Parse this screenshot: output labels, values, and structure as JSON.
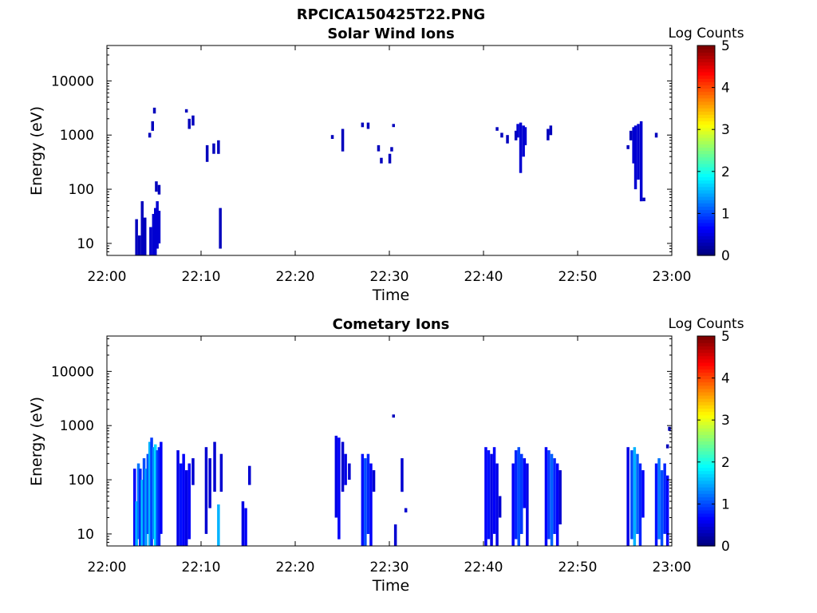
{
  "page_title": "RPCICA150425T22.PNG",
  "chart_data": [
    {
      "type": "heatmap",
      "title": "Solar Wind Ions",
      "xlabel": "Time",
      "ylabel": "Energy (eV)",
      "xlim": [
        "22:00",
        "23:00"
      ],
      "x_ticks": [
        "22:00",
        "22:10",
        "22:20",
        "22:30",
        "22:40",
        "22:50",
        "23:00"
      ],
      "y_scale": "log",
      "ylim": [
        6,
        45000
      ],
      "y_ticks": [
        "10",
        "100",
        "1000",
        "10000"
      ],
      "colorbar": {
        "label": "Log Counts",
        "range": [
          0,
          5
        ],
        "ticks": [
          "0",
          "1",
          "2",
          "3",
          "4",
          "5"
        ],
        "colormap": "jet"
      },
      "grid": false,
      "cells": [
        {
          "t": 3.0,
          "e0": 6,
          "e1": 28,
          "v": 0.3
        },
        {
          "t": 3.3,
          "e0": 6,
          "e1": 14,
          "v": 0.3
        },
        {
          "t": 3.6,
          "e0": 6,
          "e1": 60,
          "v": 0.3
        },
        {
          "t": 3.9,
          "e0": 6,
          "e1": 30,
          "v": 0.3
        },
        {
          "t": 4.5,
          "e0": 6,
          "e1": 20,
          "v": 0.4
        },
        {
          "t": 4.8,
          "e0": 6,
          "e1": 35,
          "v": 0.4
        },
        {
          "t": 5.0,
          "e0": 6,
          "e1": 45,
          "v": 0.4
        },
        {
          "t": 5.2,
          "e0": 8,
          "e1": 60,
          "v": 0.4
        },
        {
          "t": 5.4,
          "e0": 10,
          "e1": 40,
          "v": 0.4
        },
        {
          "t": 5.1,
          "e0": 90,
          "e1": 140,
          "v": 0.3
        },
        {
          "t": 5.4,
          "e0": 80,
          "e1": 120,
          "v": 0.3
        },
        {
          "t": 4.4,
          "e0": 900,
          "e1": 1100,
          "v": 0.3
        },
        {
          "t": 4.7,
          "e0": 1200,
          "e1": 1800,
          "v": 0.3
        },
        {
          "t": 4.9,
          "e0": 2500,
          "e1": 3200,
          "v": 0.3
        },
        {
          "t": 8.3,
          "e0": 2600,
          "e1": 3000,
          "v": 0.3
        },
        {
          "t": 8.6,
          "e0": 1300,
          "e1": 2000,
          "v": 0.3
        },
        {
          "t": 9.0,
          "e0": 1500,
          "e1": 2300,
          "v": 0.3
        },
        {
          "t": 10.5,
          "e0": 320,
          "e1": 650,
          "v": 0.3
        },
        {
          "t": 11.2,
          "e0": 450,
          "e1": 700,
          "v": 0.3
        },
        {
          "t": 11.7,
          "e0": 450,
          "e1": 800,
          "v": 0.3
        },
        {
          "t": 11.9,
          "e0": 8,
          "e1": 45,
          "v": 0.3
        },
        {
          "t": 23.8,
          "e0": 850,
          "e1": 1000,
          "v": 0.3
        },
        {
          "t": 24.9,
          "e0": 500,
          "e1": 1300,
          "v": 0.3
        },
        {
          "t": 27.0,
          "e0": 1400,
          "e1": 1700,
          "v": 0.3
        },
        {
          "t": 27.6,
          "e0": 1300,
          "e1": 1700,
          "v": 0.3
        },
        {
          "t": 28.7,
          "e0": 500,
          "e1": 650,
          "v": 0.3
        },
        {
          "t": 29.0,
          "e0": 300,
          "e1": 380,
          "v": 0.3
        },
        {
          "t": 29.9,
          "e0": 300,
          "e1": 450,
          "v": 0.3
        },
        {
          "t": 30.1,
          "e0": 500,
          "e1": 600,
          "v": 0.3
        },
        {
          "t": 30.3,
          "e0": 1400,
          "e1": 1600,
          "v": 0.3
        },
        {
          "t": 41.3,
          "e0": 1200,
          "e1": 1400,
          "v": 0.3
        },
        {
          "t": 41.8,
          "e0": 900,
          "e1": 1100,
          "v": 0.3
        },
        {
          "t": 42.4,
          "e0": 700,
          "e1": 1000,
          "v": 0.3
        },
        {
          "t": 43.3,
          "e0": 800,
          "e1": 1200,
          "v": 0.3
        },
        {
          "t": 43.5,
          "e0": 900,
          "e1": 1600,
          "v": 0.4
        },
        {
          "t": 43.8,
          "e0": 200,
          "e1": 1700,
          "v": 0.4
        },
        {
          "t": 44.1,
          "e0": 400,
          "e1": 1500,
          "v": 0.4
        },
        {
          "t": 44.3,
          "e0": 650,
          "e1": 1400,
          "v": 0.4
        },
        {
          "t": 46.7,
          "e0": 800,
          "e1": 1300,
          "v": 0.3
        },
        {
          "t": 47.0,
          "e0": 1000,
          "e1": 1500,
          "v": 0.3
        },
        {
          "t": 55.2,
          "e0": 550,
          "e1": 650,
          "v": 0.3
        },
        {
          "t": 55.5,
          "e0": 800,
          "e1": 1200,
          "v": 0.3
        },
        {
          "t": 55.8,
          "e0": 300,
          "e1": 1400,
          "v": 0.4
        },
        {
          "t": 56.0,
          "e0": 100,
          "e1": 1500,
          "v": 0.4
        },
        {
          "t": 56.3,
          "e0": 150,
          "e1": 1600,
          "v": 0.4
        },
        {
          "t": 56.6,
          "e0": 60,
          "e1": 1800,
          "v": 0.4
        },
        {
          "t": 56.9,
          "e0": 60,
          "e1": 70,
          "v": 0.3
        },
        {
          "t": 58.2,
          "e0": 900,
          "e1": 1100,
          "v": 0.3
        }
      ]
    },
    {
      "type": "heatmap",
      "title": "Cometary Ions",
      "xlabel": "Time",
      "ylabel": "Energy (eV)",
      "xlim": [
        "22:00",
        "23:00"
      ],
      "x_ticks": [
        "22:00",
        "22:10",
        "22:20",
        "22:30",
        "22:40",
        "22:50",
        "23:00"
      ],
      "y_scale": "log",
      "ylim": [
        6,
        45000
      ],
      "y_ticks": [
        "10",
        "100",
        "1000",
        "10000"
      ],
      "colorbar": {
        "label": "Log Counts",
        "range": [
          0,
          5
        ],
        "ticks": [
          "0",
          "1",
          "2",
          "3",
          "4",
          "5"
        ],
        "colormap": "jet"
      },
      "grid": false,
      "cells": [
        {
          "t": 2.8,
          "e0": 6,
          "e1": 160,
          "v": 0.6
        },
        {
          "t": 3.0,
          "e0": 6,
          "e1": 40,
          "v": 1.5
        },
        {
          "t": 3.2,
          "e0": 8,
          "e1": 200,
          "v": 1.2
        },
        {
          "t": 3.4,
          "e0": 6,
          "e1": 160,
          "v": 0.8
        },
        {
          "t": 3.6,
          "e0": 6,
          "e1": 100,
          "v": 1.6
        },
        {
          "t": 3.8,
          "e0": 6,
          "e1": 250,
          "v": 1.0
        },
        {
          "t": 4.0,
          "e0": 6,
          "e1": 160,
          "v": 1.4
        },
        {
          "t": 4.2,
          "e0": 10,
          "e1": 300,
          "v": 1.0
        },
        {
          "t": 4.4,
          "e0": 6,
          "e1": 500,
          "v": 1.5
        },
        {
          "t": 4.6,
          "e0": 6,
          "e1": 600,
          "v": 0.9
        },
        {
          "t": 4.8,
          "e0": 8,
          "e1": 400,
          "v": 1.3
        },
        {
          "t": 5.0,
          "e0": 6,
          "e1": 450,
          "v": 1.7
        },
        {
          "t": 5.2,
          "e0": 6,
          "e1": 350,
          "v": 1.0
        },
        {
          "t": 5.4,
          "e0": 6,
          "e1": 400,
          "v": 0.8
        },
        {
          "t": 5.6,
          "e0": 10,
          "e1": 500,
          "v": 0.6
        },
        {
          "t": 7.4,
          "e0": 6,
          "e1": 350,
          "v": 0.5
        },
        {
          "t": 7.7,
          "e0": 6,
          "e1": 200,
          "v": 0.7
        },
        {
          "t": 8.0,
          "e0": 6,
          "e1": 300,
          "v": 0.6
        },
        {
          "t": 8.3,
          "e0": 6,
          "e1": 150,
          "v": 0.5
        },
        {
          "t": 8.6,
          "e0": 8,
          "e1": 200,
          "v": 0.6
        },
        {
          "t": 9.0,
          "e0": 80,
          "e1": 250,
          "v": 0.4
        },
        {
          "t": 10.4,
          "e0": 10,
          "e1": 400,
          "v": 0.4
        },
        {
          "t": 10.8,
          "e0": 30,
          "e1": 250,
          "v": 0.4
        },
        {
          "t": 11.3,
          "e0": 60,
          "e1": 500,
          "v": 0.4
        },
        {
          "t": 11.7,
          "e0": 6,
          "e1": 35,
          "v": 1.5
        },
        {
          "t": 12.0,
          "e0": 60,
          "e1": 300,
          "v": 0.4
        },
        {
          "t": 14.3,
          "e0": 6,
          "e1": 40,
          "v": 0.5
        },
        {
          "t": 14.6,
          "e0": 6,
          "e1": 30,
          "v": 0.6
        },
        {
          "t": 15.0,
          "e0": 80,
          "e1": 180,
          "v": 0.4
        },
        {
          "t": 24.2,
          "e0": 20,
          "e1": 650,
          "v": 0.5
        },
        {
          "t": 24.5,
          "e0": 8,
          "e1": 600,
          "v": 0.6
        },
        {
          "t": 24.9,
          "e0": 60,
          "e1": 500,
          "v": 0.4
        },
        {
          "t": 25.2,
          "e0": 80,
          "e1": 300,
          "v": 0.5
        },
        {
          "t": 25.6,
          "e0": 100,
          "e1": 200,
          "v": 0.4
        },
        {
          "t": 27.0,
          "e0": 6,
          "e1": 300,
          "v": 0.7
        },
        {
          "t": 27.3,
          "e0": 6,
          "e1": 250,
          "v": 1.0
        },
        {
          "t": 27.6,
          "e0": 10,
          "e1": 300,
          "v": 0.8
        },
        {
          "t": 27.9,
          "e0": 6,
          "e1": 200,
          "v": 0.6
        },
        {
          "t": 28.2,
          "e0": 60,
          "e1": 150,
          "v": 0.4
        },
        {
          "t": 30.3,
          "e0": 1400,
          "e1": 1600,
          "v": 0.3
        },
        {
          "t": 30.5,
          "e0": 6,
          "e1": 15,
          "v": 0.4
        },
        {
          "t": 31.2,
          "e0": 60,
          "e1": 250,
          "v": 0.4
        },
        {
          "t": 31.6,
          "e0": 25,
          "e1": 30,
          "v": 0.4
        },
        {
          "t": 40.1,
          "e0": 6,
          "e1": 400,
          "v": 0.6
        },
        {
          "t": 40.4,
          "e0": 8,
          "e1": 350,
          "v": 0.7
        },
        {
          "t": 40.7,
          "e0": 6,
          "e1": 300,
          "v": 0.5
        },
        {
          "t": 41.0,
          "e0": 10,
          "e1": 400,
          "v": 0.6
        },
        {
          "t": 41.3,
          "e0": 6,
          "e1": 200,
          "v": 0.5
        },
        {
          "t": 41.6,
          "e0": 20,
          "e1": 50,
          "v": 0.4
        },
        {
          "t": 43.0,
          "e0": 6,
          "e1": 200,
          "v": 0.6
        },
        {
          "t": 43.3,
          "e0": 8,
          "e1": 350,
          "v": 0.8
        },
        {
          "t": 43.6,
          "e0": 6,
          "e1": 400,
          "v": 1.0
        },
        {
          "t": 43.9,
          "e0": 10,
          "e1": 300,
          "v": 0.9
        },
        {
          "t": 44.2,
          "e0": 30,
          "e1": 250,
          "v": 0.6
        },
        {
          "t": 44.5,
          "e0": 6,
          "e1": 200,
          "v": 0.5
        },
        {
          "t": 46.5,
          "e0": 6,
          "e1": 400,
          "v": 0.6
        },
        {
          "t": 46.8,
          "e0": 8,
          "e1": 350,
          "v": 0.9
        },
        {
          "t": 47.1,
          "e0": 6,
          "e1": 300,
          "v": 1.1
        },
        {
          "t": 47.4,
          "e0": 10,
          "e1": 250,
          "v": 0.8
        },
        {
          "t": 47.7,
          "e0": 6,
          "e1": 200,
          "v": 0.6
        },
        {
          "t": 48.0,
          "e0": 15,
          "e1": 150,
          "v": 0.4
        },
        {
          "t": 55.2,
          "e0": 6,
          "e1": 400,
          "v": 0.5
        },
        {
          "t": 55.6,
          "e0": 8,
          "e1": 350,
          "v": 1.0
        },
        {
          "t": 55.9,
          "e0": 6,
          "e1": 400,
          "v": 1.5
        },
        {
          "t": 56.2,
          "e0": 10,
          "e1": 300,
          "v": 1.1
        },
        {
          "t": 56.5,
          "e0": 6,
          "e1": 200,
          "v": 0.8
        },
        {
          "t": 56.8,
          "e0": 20,
          "e1": 150,
          "v": 0.6
        },
        {
          "t": 58.2,
          "e0": 6,
          "e1": 200,
          "v": 0.7
        },
        {
          "t": 58.5,
          "e0": 8,
          "e1": 250,
          "v": 1.2
        },
        {
          "t": 58.8,
          "e0": 6,
          "e1": 150,
          "v": 1.0
        },
        {
          "t": 59.1,
          "e0": 10,
          "e1": 200,
          "v": 0.8
        },
        {
          "t": 59.4,
          "e0": 6,
          "e1": 120,
          "v": 0.6
        },
        {
          "t": 59.6,
          "e0": 800,
          "e1": 950,
          "v": 0.3
        },
        {
          "t": 59.4,
          "e0": 380,
          "e1": 450,
          "v": 0.3
        }
      ]
    }
  ]
}
